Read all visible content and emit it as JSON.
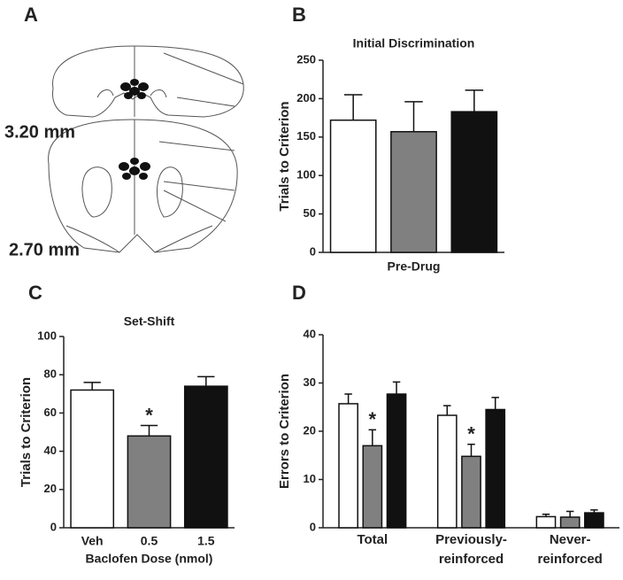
{
  "diagram": {
    "panel": "A",
    "labels": [
      "3.20 mm",
      "2.70 mm"
    ]
  },
  "chart_data": [
    {
      "type": "bar",
      "panel": "B",
      "title": "Initial Discrimination",
      "y_label": "Trials to Criterion",
      "x_label": "Pre-Drug",
      "values": [
        172,
        157,
        183
      ],
      "errors": [
        33,
        39,
        28
      ],
      "colors": [
        "#ffffff",
        "#808080",
        "#111111"
      ],
      "ylim": [
        0,
        250
      ],
      "yticks": [
        0,
        50,
        100,
        150,
        200,
        250
      ]
    },
    {
      "type": "bar",
      "panel": "C",
      "title": "Set-Shift",
      "y_label": "Trials to Criterion",
      "x_label": "Baclofen Dose (nmol)",
      "categories": [
        "Veh",
        "0.5",
        "1.5"
      ],
      "values": [
        72,
        48,
        74
      ],
      "errors": [
        4,
        5.5,
        5
      ],
      "markers": [
        null,
        "*",
        null
      ],
      "colors": [
        "#ffffff",
        "#808080",
        "#111111"
      ],
      "ylim": [
        0,
        100
      ],
      "yticks": [
        0,
        20,
        40,
        60,
        80,
        100
      ]
    },
    {
      "type": "grouped-bar",
      "panel": "D",
      "y_label": "Errors to Criterion",
      "categories": [
        [
          "Total"
        ],
        [
          "Previously-",
          "reinforced"
        ],
        [
          "Never-",
          "reinforced"
        ]
      ],
      "series": [
        {
          "color": "#ffffff",
          "values": [
            25.7,
            23.3,
            2.3
          ],
          "errors": [
            2,
            2,
            0.5
          ],
          "markers": [
            null,
            null,
            null
          ]
        },
        {
          "color": "#808080",
          "values": [
            17,
            14.8,
            2.2
          ],
          "errors": [
            3.3,
            2.5,
            1.2
          ],
          "markers": [
            "*",
            "*",
            null
          ]
        },
        {
          "color": "#111111",
          "values": [
            27.7,
            24.5,
            3.1
          ],
          "errors": [
            2.5,
            2.5,
            0.6
          ],
          "markers": [
            null,
            null,
            null
          ]
        }
      ],
      "ylim": [
        0,
        40
      ],
      "yticks": [
        0,
        10,
        20,
        30,
        40
      ]
    }
  ]
}
